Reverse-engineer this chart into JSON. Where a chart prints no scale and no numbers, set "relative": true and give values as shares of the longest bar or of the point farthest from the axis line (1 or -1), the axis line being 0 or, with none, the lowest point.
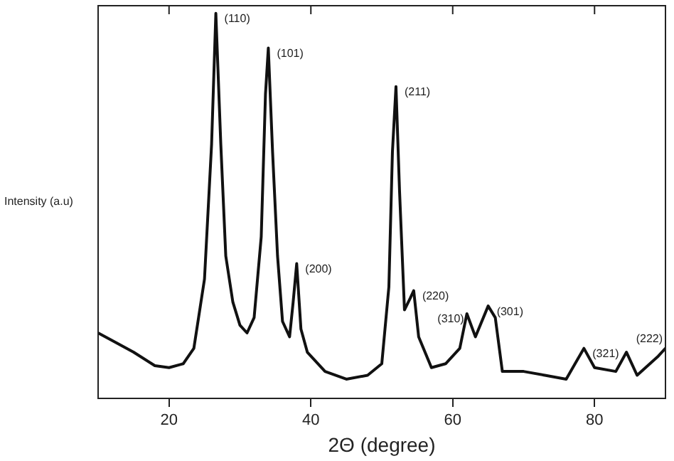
{
  "chart_data": {
    "type": "line",
    "xlabel": "2Θ (degree)",
    "ylabel": "Intensity (a.u)",
    "relative": true,
    "xlim": [
      10,
      90
    ],
    "xticks": [
      20,
      40,
      60,
      80
    ],
    "grid": false,
    "legend": false,
    "marker": "none",
    "line_style": "solid",
    "series": [
      {
        "color": "#111111",
        "x": [
          10,
          12,
          15,
          18,
          20,
          22,
          23.5,
          25,
          26,
          26.6,
          27.3,
          28,
          29,
          30,
          31,
          32,
          33,
          33.6,
          34,
          34.6,
          35.3,
          36,
          37,
          37.5,
          38,
          38.6,
          39.5,
          42,
          45,
          48,
          50,
          51,
          51.5,
          52,
          52.5,
          53.2,
          54,
          54.5,
          55.2,
          57,
          59,
          61,
          62,
          63.2,
          65,
          66,
          67,
          70,
          73,
          76,
          78.5,
          80,
          83,
          84.5,
          86,
          89,
          90
        ],
        "values": [
          0.17,
          0.15,
          0.12,
          0.085,
          0.08,
          0.09,
          0.13,
          0.31,
          0.66,
          1,
          0.66,
          0.37,
          0.25,
          0.19,
          0.17,
          0.21,
          0.42,
          0.79,
          0.91,
          0.64,
          0.37,
          0.2,
          0.16,
          0.25,
          0.35,
          0.18,
          0.12,
          0.07,
          0.05,
          0.06,
          0.09,
          0.29,
          0.64,
          0.81,
          0.54,
          0.23,
          0.26,
          0.28,
          0.16,
          0.08,
          0.09,
          0.13,
          0.22,
          0.16,
          0.24,
          0.21,
          0.07,
          0.07,
          0.06,
          0.05,
          0.13,
          0.08,
          0.07,
          0.12,
          0.06,
          0.11,
          0.13
        ]
      }
    ],
    "annotations": [
      {
        "text": "(110)",
        "x": 26.6,
        "y": 1
      },
      {
        "text": "(101)",
        "x": 34,
        "y": 0.91
      },
      {
        "text": "(200)",
        "x": 38,
        "y": 0.35
      },
      {
        "text": "(211)",
        "x": 52,
        "y": 0.81
      },
      {
        "text": "(220)",
        "x": 54.5,
        "y": 0.28
      },
      {
        "text": "(310)",
        "x": 62,
        "y": 0.22
      },
      {
        "text": "(301)",
        "x": 65,
        "y": 0.24
      },
      {
        "text": "(321)",
        "x": 78.5,
        "y": 0.13
      },
      {
        "text": "(222)",
        "x": 84.5,
        "y": 0.12
      }
    ]
  }
}
